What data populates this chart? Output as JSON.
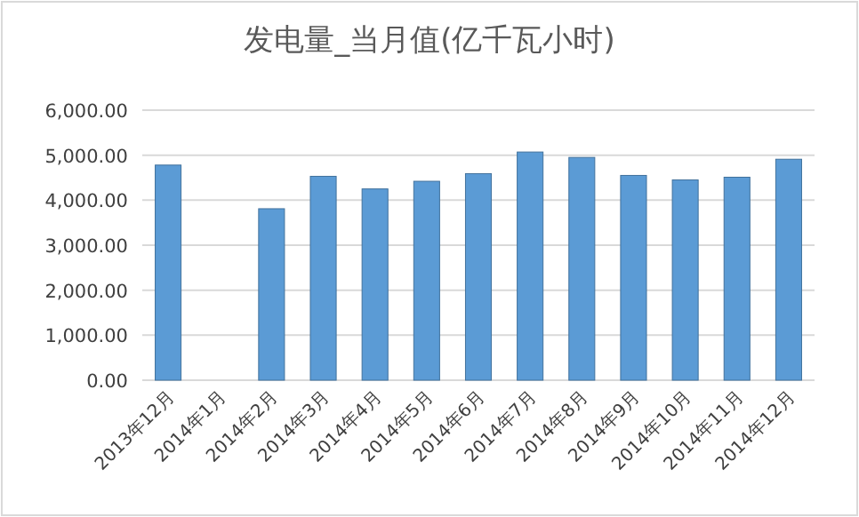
{
  "chart_data": {
    "type": "bar",
    "title": "发电量_当月值(亿千瓦小时)",
    "categories": [
      "2013年12月",
      "2014年1月",
      "2014年2月",
      "2014年3月",
      "2014年4月",
      "2014年5月",
      "2014年6月",
      "2014年7月",
      "2014年8月",
      "2014年9月",
      "2014年10月",
      "2014年11月",
      "2014年12月"
    ],
    "values": [
      4780,
      null,
      3810,
      4530,
      4250,
      4420,
      4590,
      5070,
      4950,
      4550,
      4450,
      4510,
      4910
    ],
    "color": "#5b9bd5",
    "ylim": [
      0,
      6000
    ],
    "yticks": [
      {
        "value": 0,
        "label": "0.00"
      },
      {
        "value": 1000,
        "label": "1,000.00"
      },
      {
        "value": 2000,
        "label": "2,000.00"
      },
      {
        "value": 3000,
        "label": "3,000.00"
      },
      {
        "value": 4000,
        "label": "4,000.00"
      },
      {
        "value": 5000,
        "label": "5,000.00"
      },
      {
        "value": 6000,
        "label": "6,000.00"
      }
    ],
    "grid": "y"
  }
}
